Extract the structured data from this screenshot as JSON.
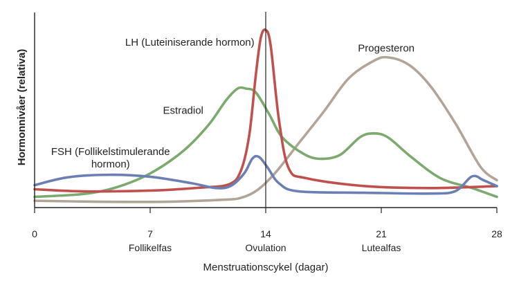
{
  "chart_data": {
    "type": "line",
    "title": "",
    "xlabel": "Menstruationscykel (dagar)",
    "ylabel": "Hormonnivåer (relativa)",
    "xlim": [
      0,
      28
    ],
    "ylim": [
      0,
      1
    ],
    "xticks": [
      {
        "value": 0,
        "label": "0"
      },
      {
        "value": 7,
        "label": "7"
      },
      {
        "value": 14,
        "label": "14"
      },
      {
        "value": 21,
        "label": "21"
      },
      {
        "value": 28,
        "label": "28"
      }
    ],
    "yticks": [],
    "grid": false,
    "legend": "none",
    "reference_line": {
      "x": 14
    },
    "phases": [
      {
        "label": "Follikelfas",
        "x": 7
      },
      {
        "label": "Ovulation",
        "x": 14
      },
      {
        "label": "Lutealfas",
        "x": 21
      }
    ],
    "series": [
      {
        "name": "LH (Luteiniserande hormon)",
        "color": "#c0504d",
        "points": [
          [
            0,
            0.094
          ],
          [
            3,
            0.083
          ],
          [
            7,
            0.087
          ],
          [
            10,
            0.102
          ],
          [
            11.8,
            0.12
          ],
          [
            12.5,
            0.19
          ],
          [
            13,
            0.37
          ],
          [
            13.4,
            0.68
          ],
          [
            13.7,
            0.87
          ],
          [
            14,
            0.91
          ],
          [
            14.3,
            0.83
          ],
          [
            14.8,
            0.45
          ],
          [
            15.4,
            0.2
          ],
          [
            16.5,
            0.15
          ],
          [
            20,
            0.11
          ],
          [
            24,
            0.1
          ],
          [
            28,
            0.11
          ]
        ]
      },
      {
        "name": "FSH (Follikelstimulerande hormon)",
        "color": "#6b7fb5",
        "points": [
          [
            0,
            0.115
          ],
          [
            2,
            0.155
          ],
          [
            4.5,
            0.168
          ],
          [
            7,
            0.158
          ],
          [
            9.5,
            0.125
          ],
          [
            11,
            0.1
          ],
          [
            11.9,
            0.112
          ],
          [
            12.7,
            0.176
          ],
          [
            13.2,
            0.252
          ],
          [
            13.6,
            0.259
          ],
          [
            14.1,
            0.207
          ],
          [
            14.8,
            0.125
          ],
          [
            16,
            0.083
          ],
          [
            20,
            0.076
          ],
          [
            24,
            0.072
          ],
          [
            25.5,
            0.085
          ],
          [
            26.5,
            0.16
          ],
          [
            27.2,
            0.14
          ],
          [
            28,
            0.11
          ]
        ]
      },
      {
        "name": "Estradiol",
        "color": "#7aaa6e",
        "points": [
          [
            0,
            0.055
          ],
          [
            3,
            0.07
          ],
          [
            5,
            0.105
          ],
          [
            7,
            0.175
          ],
          [
            9,
            0.29
          ],
          [
            10.5,
            0.42
          ],
          [
            11.6,
            0.55
          ],
          [
            12.3,
            0.61
          ],
          [
            12.8,
            0.61
          ],
          [
            13.4,
            0.59
          ],
          [
            14.2,
            0.48
          ],
          [
            15,
            0.36
          ],
          [
            16.3,
            0.275
          ],
          [
            17.3,
            0.25
          ],
          [
            18.5,
            0.27
          ],
          [
            19.7,
            0.36
          ],
          [
            20.5,
            0.38
          ],
          [
            21.4,
            0.36
          ],
          [
            22.8,
            0.26
          ],
          [
            24.6,
            0.15
          ],
          [
            26.5,
            0.1
          ],
          [
            28,
            0.055
          ]
        ]
      },
      {
        "name": "Progesteron",
        "color": "#b2a597",
        "points": [
          [
            0,
            0.035
          ],
          [
            4,
            0.03
          ],
          [
            8,
            0.03
          ],
          [
            11.4,
            0.04
          ],
          [
            12.5,
            0.05
          ],
          [
            13.5,
            0.09
          ],
          [
            14.6,
            0.18
          ],
          [
            16,
            0.33
          ],
          [
            17.5,
            0.49
          ],
          [
            19,
            0.66
          ],
          [
            20.5,
            0.75
          ],
          [
            21.4,
            0.77
          ],
          [
            22.7,
            0.73
          ],
          [
            24,
            0.62
          ],
          [
            25.5,
            0.43
          ],
          [
            27,
            0.21
          ],
          [
            28,
            0.14
          ]
        ]
      }
    ],
    "series_labels": [
      {
        "series": 0,
        "text": "LH (Luteiniserande hormon)",
        "lines": [
          "LH (Luteiniserande hormon)"
        ],
        "x": 9.4,
        "y": 0.83,
        "anchor": "middle"
      },
      {
        "series": 1,
        "text": "FSH (Follikelstimulerande hormon)",
        "lines": [
          "FSH (Follikelstimulerande",
          "hormon)"
        ],
        "x": 4.6,
        "y": 0.27,
        "anchor": "middle"
      },
      {
        "series": 2,
        "text": "Estradiol",
        "lines": [
          "Estradiol"
        ],
        "x": 9,
        "y": 0.48,
        "anchor": "middle"
      },
      {
        "series": 3,
        "text": "Progesteron",
        "lines": [
          "Progesteron"
        ],
        "x": 21.3,
        "y": 0.8,
        "anchor": "middle"
      }
    ]
  }
}
